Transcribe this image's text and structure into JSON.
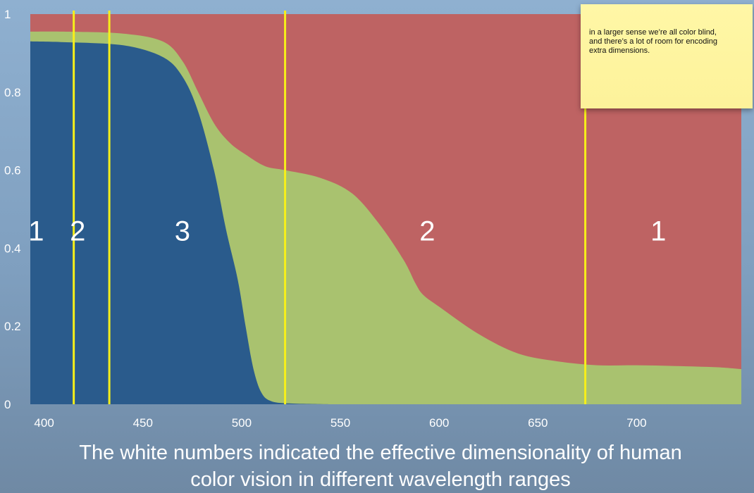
{
  "chart_data": {
    "type": "area",
    "x_range": [
      393,
      753
    ],
    "y_range": [
      0,
      1
    ],
    "xticks": [
      "400",
      "450",
      "500",
      "550",
      "600",
      "650",
      "700"
    ],
    "yticks": [
      "0",
      "0.2",
      "0.4",
      "0.6",
      "0.8",
      "1"
    ],
    "series": [
      {
        "color": "#2a5b8c",
        "x": [
          393,
          410,
          440,
          460,
          470,
          478,
          486,
          492,
          498,
          502,
          506,
          510,
          515,
          525,
          545
        ],
        "y": [
          0.93,
          0.928,
          0.92,
          0.89,
          0.84,
          0.75,
          0.6,
          0.45,
          0.32,
          0.2,
          0.09,
          0.03,
          0.008,
          0.002,
          0.0
        ]
      },
      {
        "color": "#a9c26f",
        "x": [
          393,
          410,
          440,
          460,
          470,
          478,
          486,
          494,
          502,
          512,
          522,
          540,
          556,
          570,
          582,
          588,
          592,
          600,
          620,
          640,
          660,
          680,
          700,
          720,
          740,
          753
        ],
        "y": [
          0.955,
          0.955,
          0.95,
          0.93,
          0.88,
          0.8,
          0.72,
          0.67,
          0.64,
          0.61,
          0.6,
          0.58,
          0.54,
          0.46,
          0.37,
          0.31,
          0.28,
          0.25,
          0.18,
          0.13,
          0.11,
          0.1,
          0.1,
          0.098,
          0.095,
          0.09
        ]
      },
      {
        "color": "#be6363",
        "x": [
          393,
          753
        ],
        "y": [
          1.0,
          1.0
        ]
      }
    ],
    "dividers": [
      415,
      433,
      522,
      674
    ],
    "divider_color": "#f6ef1a",
    "regions": [
      {
        "label": "1",
        "x": 396
      },
      {
        "label": "2",
        "x": 417
      },
      {
        "label": "3",
        "x": 470
      },
      {
        "label": "2",
        "x": 594
      },
      {
        "label": "1",
        "x": 711
      }
    ]
  },
  "note": {
    "lines": [
      "in a larger sense we’re all color blind,",
      "and there’s a lot of room for encoding",
      "extra dimensions."
    ]
  },
  "caption": {
    "line1": "The white numbers indicated the effective dimensionality of human",
    "line2": "color vision in different wavelength ranges"
  }
}
